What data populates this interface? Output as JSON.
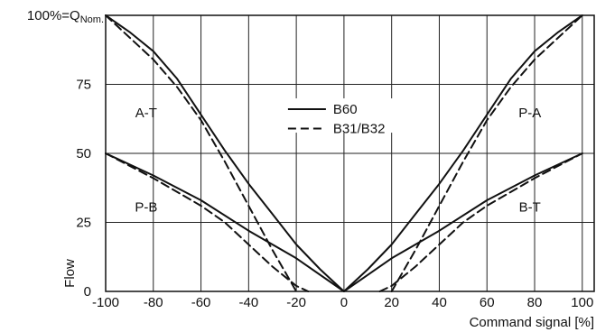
{
  "chart_data": {
    "type": "line",
    "xlabel": "Command signal [%]",
    "ylabel": "Flow",
    "xlim": [
      -100,
      105
    ],
    "ylim": [
      0,
      100
    ],
    "grid": true,
    "x_ticks": [
      -100,
      -80,
      -60,
      -40,
      -20,
      0,
      20,
      40,
      60,
      80,
      100
    ],
    "x_tick_labels": [
      "-100",
      "-80",
      "-60",
      "-40",
      "-20",
      "0",
      "20",
      "40",
      "60",
      "80",
      "100"
    ],
    "y_ticks": [
      0,
      25,
      50,
      75,
      100
    ],
    "y_tick_labels": [
      "0",
      "25",
      "50",
      "75",
      ""
    ],
    "y_top_label": {
      "prefix": "100%=Q",
      "subscript": "Nom."
    },
    "legend": {
      "position": "center",
      "entries": [
        {
          "label": "B60",
          "style": "solid"
        },
        {
          "label": "B31/B32",
          "style": "dashed"
        }
      ]
    },
    "region_labels": [
      {
        "text": "A-T",
        "x": -83,
        "y": 63
      },
      {
        "text": "P-A",
        "x": 78,
        "y": 63
      },
      {
        "text": "P-B",
        "x": -83,
        "y": 29
      },
      {
        "text": "B-T",
        "x": 78,
        "y": 29
      }
    ],
    "series": [
      {
        "id": "b60-pa-at",
        "style": "solid",
        "group": "B60",
        "points": [
          [
            -100,
            100
          ],
          [
            -90,
            94
          ],
          [
            -80,
            87
          ],
          [
            -70,
            77
          ],
          [
            -60,
            64
          ],
          [
            -50,
            51
          ],
          [
            -40,
            39
          ],
          [
            -30,
            28
          ],
          [
            -20,
            17
          ],
          [
            -10,
            8
          ],
          [
            0,
            0
          ],
          [
            10,
            8
          ],
          [
            20,
            17
          ],
          [
            30,
            28
          ],
          [
            40,
            39
          ],
          [
            50,
            51
          ],
          [
            60,
            64
          ],
          [
            70,
            77
          ],
          [
            80,
            87
          ],
          [
            90,
            94
          ],
          [
            100,
            100
          ]
        ]
      },
      {
        "id": "b60-pb-bt",
        "style": "solid",
        "group": "B60",
        "points": [
          [
            -100,
            50
          ],
          [
            -80,
            42
          ],
          [
            -60,
            33
          ],
          [
            -40,
            22
          ],
          [
            -20,
            12
          ],
          [
            0,
            0
          ],
          [
            20,
            12
          ],
          [
            40,
            22
          ],
          [
            60,
            33
          ],
          [
            80,
            42
          ],
          [
            100,
            50
          ]
        ]
      },
      {
        "id": "b31-at",
        "style": "dashed",
        "group": "B31/B32",
        "points": [
          [
            -100,
            100
          ],
          [
            -90,
            92
          ],
          [
            -80,
            84
          ],
          [
            -70,
            74
          ],
          [
            -60,
            62
          ],
          [
            -50,
            47
          ],
          [
            -40,
            31
          ],
          [
            -30,
            15
          ],
          [
            -20,
            0
          ]
        ]
      },
      {
        "id": "b31-pa",
        "style": "dashed",
        "group": "B31/B32",
        "points": [
          [
            20,
            0
          ],
          [
            30,
            15
          ],
          [
            40,
            31
          ],
          [
            50,
            47
          ],
          [
            60,
            62
          ],
          [
            70,
            74
          ],
          [
            80,
            84
          ],
          [
            90,
            92
          ],
          [
            100,
            100
          ]
        ]
      },
      {
        "id": "b31-pb",
        "style": "dashed",
        "group": "B31/B32",
        "points": [
          [
            -100,
            50
          ],
          [
            -80,
            41
          ],
          [
            -60,
            31
          ],
          [
            -50,
            25
          ],
          [
            -40,
            17
          ],
          [
            -30,
            9
          ],
          [
            -20,
            2
          ],
          [
            -15,
            0
          ]
        ]
      },
      {
        "id": "b31-bt",
        "style": "dashed",
        "group": "B31/B32",
        "points": [
          [
            15,
            0
          ],
          [
            20,
            2
          ],
          [
            30,
            9
          ],
          [
            40,
            17
          ],
          [
            50,
            25
          ],
          [
            60,
            31
          ],
          [
            80,
            41
          ],
          [
            100,
            50
          ]
        ]
      }
    ]
  }
}
